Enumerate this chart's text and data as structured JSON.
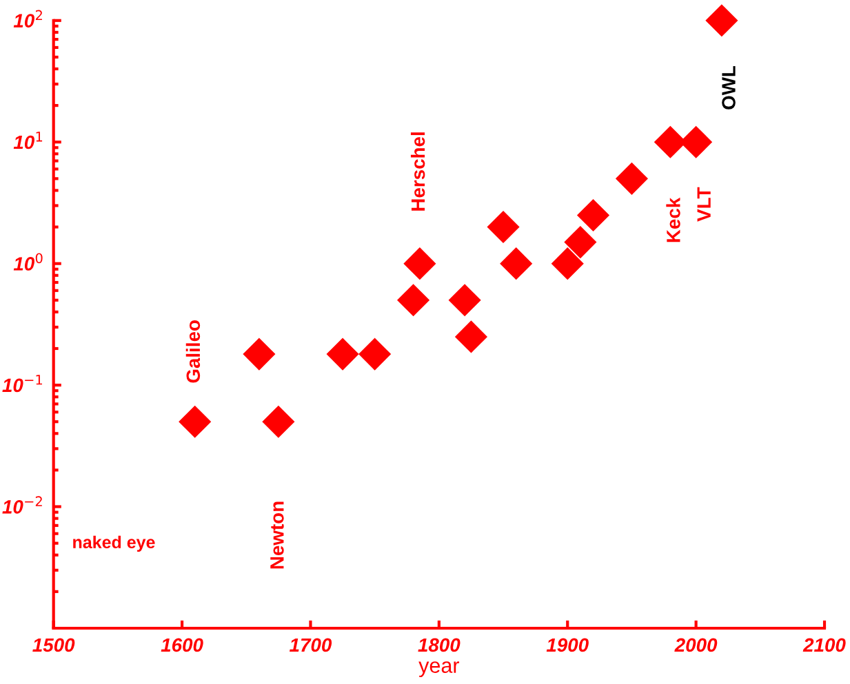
{
  "chart_data": {
    "type": "scatter",
    "xlabel": "year",
    "x": [
      1610,
      1660,
      1675,
      1725,
      1750,
      1780,
      1785,
      1820,
      1825,
      1850,
      1860,
      1900,
      1910,
      1920,
      1950,
      1980,
      2000,
      2020
    ],
    "values": [
      0.05,
      0.18,
      0.05,
      0.18,
      0.18,
      0.5,
      1,
      0.5,
      0.25,
      2,
      1,
      1,
      1.5,
      2.5,
      5,
      10,
      10,
      100
    ],
    "color": "#ff0000",
    "marker": "diamond",
    "log": "y",
    "grid": false,
    "xlim": [
      1500,
      2100
    ],
    "xticks": [
      1500,
      1600,
      1700,
      1800,
      1900,
      2000,
      2100
    ],
    "ylim": [
      0.001,
      100
    ],
    "yticks": [
      {
        "value": 0.01,
        "label": "10$^{−2}$"
      },
      {
        "value": 0.1,
        "label": "10$^{−1}$"
      },
      {
        "value": 1,
        "label": "10$^{0}$"
      },
      {
        "value": 10,
        "label": "10$^{1}$"
      },
      {
        "value": 100,
        "label": "10$^{2}$"
      }
    ],
    "annotations": [
      "naked eye",
      {
        "text": "Galileo",
        "x": 1610,
        "y": 0.05
      },
      "Newton",
      {
        "text": "Herschel",
        "x": 1785,
        "y": 1
      },
      {
        "text": "Keck",
        "x": 1980,
        "y": 10
      },
      {
        "text": "VLT",
        "x": 2000,
        "y": 10
      },
      {
        "text": "OWL",
        "x": 2020,
        "y": 100
      }
    ]
  }
}
